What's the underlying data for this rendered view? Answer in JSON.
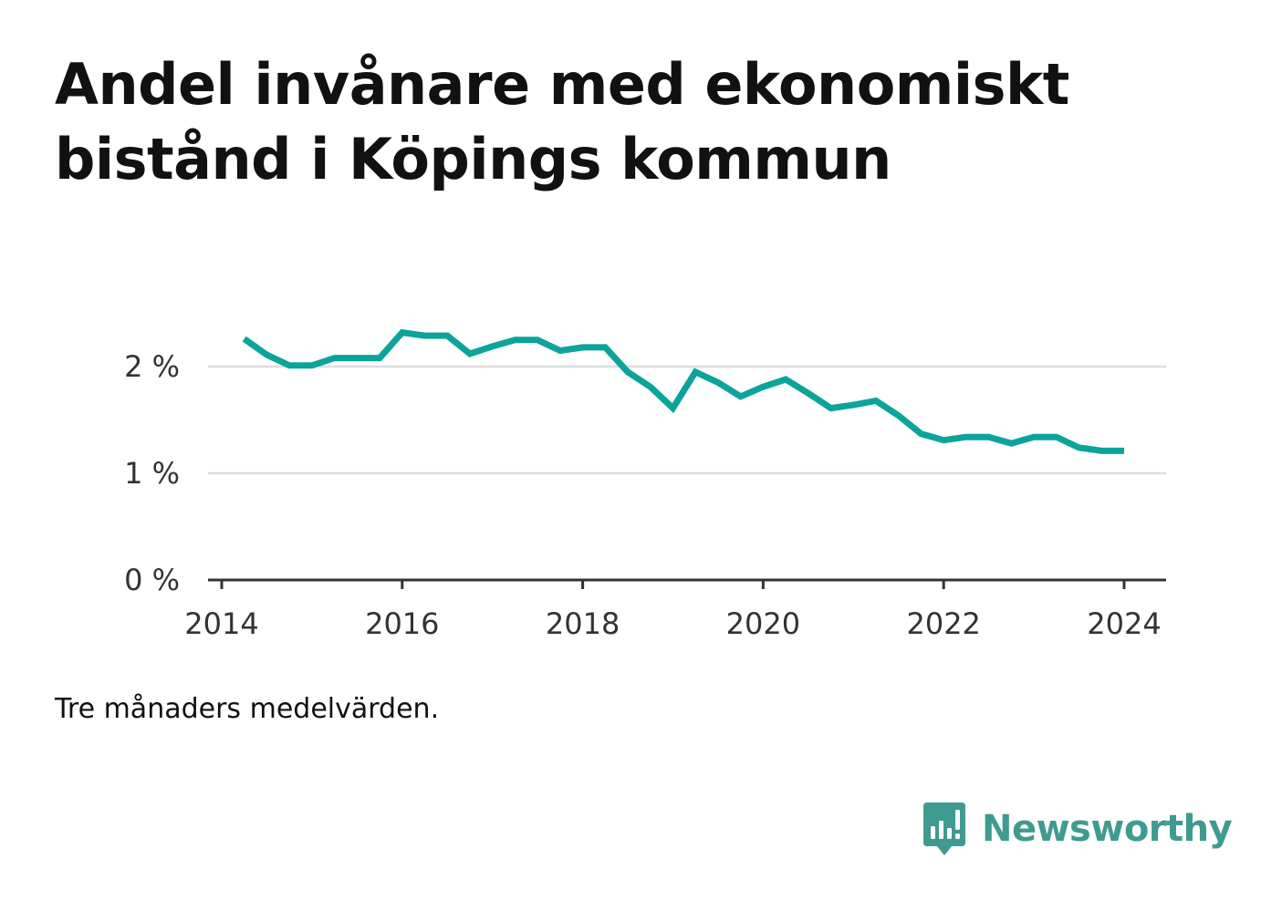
{
  "title": "Andel invånare med ekonomiskt bistånd i Köpings kommun",
  "note": "Tre månaders medelvärden.",
  "brand": {
    "name": "Newsworthy",
    "color": "#3f9b8f",
    "icon": "newsworthy-logo-icon"
  },
  "chart_data": {
    "type": "line",
    "title": "Andel invånare med ekonomiskt bistånd i Köpings kommun",
    "xlabel": "",
    "ylabel": "",
    "y_unit": "%",
    "xlim": [
      2014,
      2024.6
    ],
    "ylim": [
      0,
      2.4
    ],
    "x_ticks": [
      2014,
      2016,
      2018,
      2020,
      2022,
      2024
    ],
    "x_tick_labels": [
      "2014",
      "2016",
      "2018",
      "2020",
      "2022",
      "2024"
    ],
    "y_ticks": [
      0,
      1,
      2
    ],
    "y_tick_labels": [
      "0 %",
      "1 %",
      "2 %"
    ],
    "grid": true,
    "line_color": "#0ca49a",
    "series": [
      {
        "x": [
          "2014-04",
          "2014-07",
          "2014-10",
          "2015-01",
          "2015-04",
          "2015-07",
          "2015-10",
          "2016-01",
          "2016-04",
          "2016-07",
          "2016-10",
          "2017-01",
          "2017-04",
          "2017-07",
          "2017-10",
          "2018-01",
          "2018-04",
          "2018-07",
          "2018-10",
          "2019-01",
          "2019-04",
          "2019-07",
          "2019-10",
          "2020-01",
          "2020-04",
          "2020-07",
          "2020-10",
          "2021-01",
          "2021-04",
          "2021-07",
          "2021-10",
          "2022-01",
          "2022-04",
          "2022-07",
          "2022-10",
          "2023-01",
          "2023-04",
          "2023-07",
          "2023-10",
          "2024-01"
        ],
        "values": [
          2.26,
          2.11,
          2.01,
          2.01,
          2.08,
          2.08,
          2.08,
          2.32,
          2.29,
          2.29,
          2.12,
          2.19,
          2.25,
          2.25,
          2.15,
          2.18,
          2.18,
          1.95,
          1.81,
          1.61,
          1.95,
          1.85,
          1.72,
          1.81,
          1.88,
          1.75,
          1.61,
          1.64,
          1.68,
          1.54,
          1.37,
          1.31,
          1.34,
          1.34,
          1.28,
          1.34,
          1.34,
          1.24,
          1.21,
          1.21
        ]
      }
    ]
  }
}
